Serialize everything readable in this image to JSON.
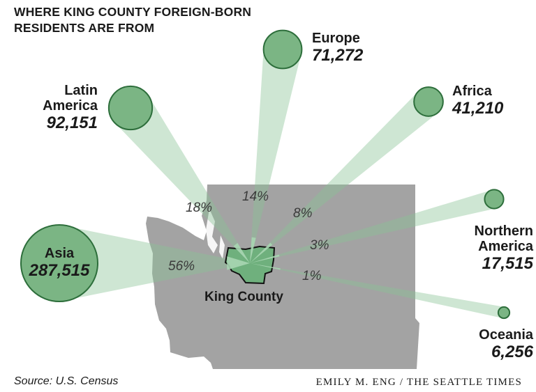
{
  "title": "WHERE KING COUNTY FOREIGN-BORN RESIDENTS ARE FROM",
  "center_label": "King County",
  "source": "Source: U.S. Census",
  "credit": "EMILY M. ENG / THE SEATTLE TIMES",
  "colors": {
    "circle_fill": "#7bb584",
    "circle_stroke": "#2d6e3b",
    "beam": "#8bc496",
    "map_fill": "#a3a3a3",
    "county_fill": "#6fb07d",
    "county_stroke": "#111111"
  },
  "chart_data": {
    "type": "bubble-flow",
    "unit": "residents",
    "regions": [
      {
        "name": "Asia",
        "value": 287515,
        "display": "287,515",
        "percent": "56%"
      },
      {
        "name": "Latin America",
        "name_lines": [
          "Latin",
          "America"
        ],
        "value": 92151,
        "display": "92,151",
        "percent": "18%"
      },
      {
        "name": "Europe",
        "value": 71272,
        "display": "71,272",
        "percent": "14%"
      },
      {
        "name": "Africa",
        "value": 41210,
        "display": "41,210",
        "percent": "8%"
      },
      {
        "name": "Northern America",
        "name_lines": [
          "Northern",
          "America"
        ],
        "value": 17515,
        "display": "17,515",
        "percent": "3%"
      },
      {
        "name": "Oceania",
        "value": 6256,
        "display": "6,256",
        "percent": "1%"
      }
    ]
  }
}
